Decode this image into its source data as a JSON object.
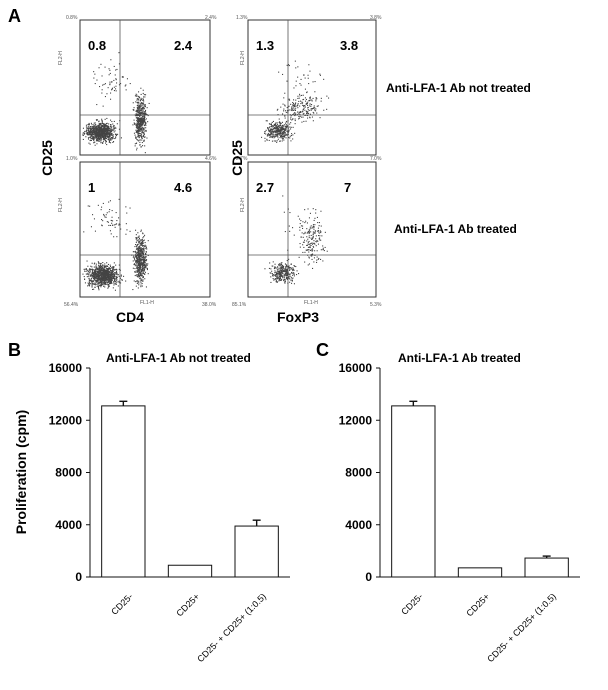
{
  "panels": {
    "A": "A",
    "B": "B",
    "C": "C"
  },
  "flow": {
    "ylabel": "CD25",
    "ylabel_right": "CD25",
    "xlabel_left": "CD4",
    "xlabel_right": "FoxP3",
    "row_labels": [
      "Anti-LFA-1 Ab not treated",
      "Anti-LFA-1 Ab treated"
    ],
    "axis_label_y": "FL2-H",
    "axis_label_x": "FL1-H",
    "plots": [
      {
        "quadrants": {
          "ul": "0.8",
          "ur": "2.4"
        },
        "corners": {
          "tl": "0.8%",
          "tr": "2.4%",
          "bl": "",
          "br": ""
        }
      },
      {
        "quadrants": {
          "ul": "1.3",
          "ur": "3.8"
        },
        "corners": {
          "tl": "1.3%",
          "tr": "3.8%",
          "bl": "",
          "br": ""
        }
      },
      {
        "quadrants": {
          "ul": "1",
          "ur": "4.6"
        },
        "corners": {
          "tl": "1.0%",
          "tr": "4.6%",
          "bl": "56.4%",
          "br": "38.0%"
        }
      },
      {
        "quadrants": {
          "ul": "2.7",
          "ur": "7"
        },
        "corners": {
          "tl": "2.7%",
          "tr": "7.0%",
          "bl": "85.1%",
          "br": "5.3%"
        }
      }
    ]
  },
  "chart_data": [
    {
      "type": "bar",
      "title": "Anti-LFA-1 Ab not treated",
      "ylabel": "Proliferation (cpm)",
      "categories": [
        "CD25-",
        "CD25+",
        "CD25- + CD25+ (1:0.5)"
      ],
      "values": [
        13100,
        900,
        3900
      ],
      "errors": [
        350,
        0,
        450
      ],
      "yticks": [
        0,
        4000,
        8000,
        12000,
        16000
      ],
      "ylim": [
        0,
        16000
      ]
    },
    {
      "type": "bar",
      "title": "Anti-LFA-1 Ab treated",
      "ylabel": "",
      "categories": [
        "CD25-",
        "CD25+",
        "CD25- + CD25+ (1:0.5)"
      ],
      "values": [
        13100,
        700,
        1450
      ],
      "errors": [
        350,
        0,
        150
      ],
      "yticks": [
        0,
        4000,
        8000,
        12000,
        16000
      ],
      "ylim": [
        0,
        16000
      ]
    }
  ]
}
